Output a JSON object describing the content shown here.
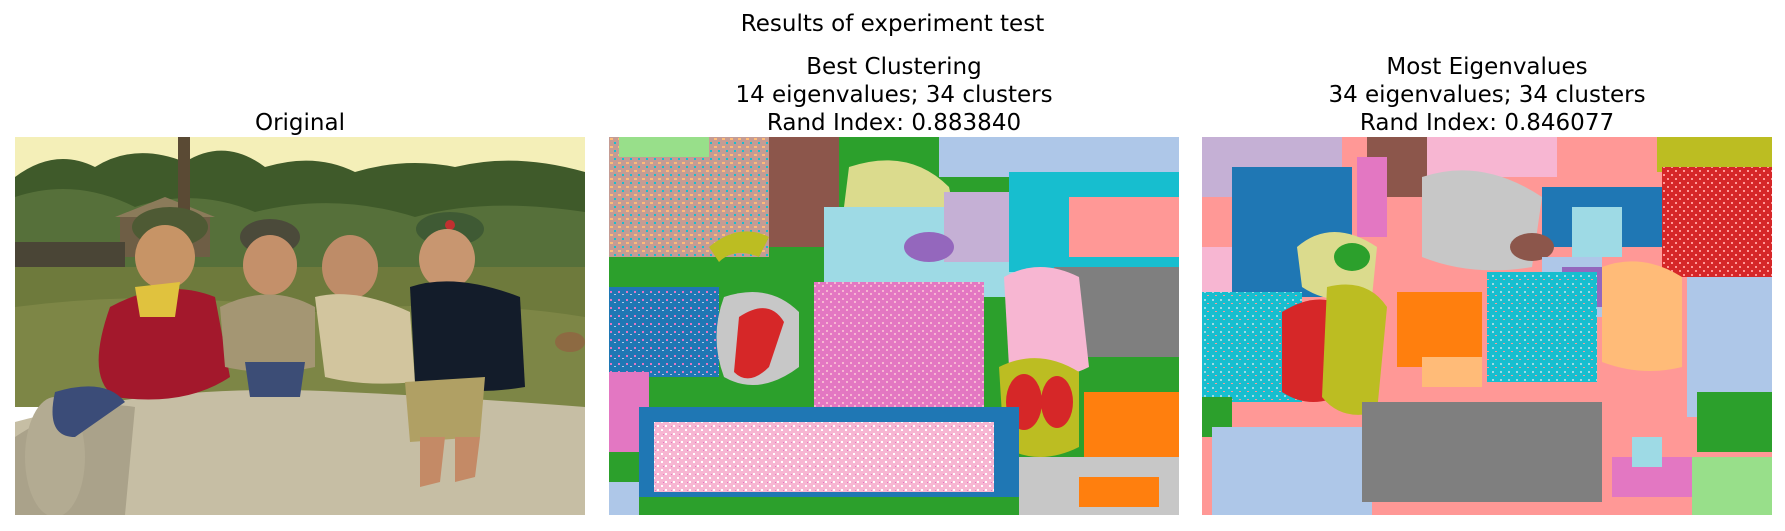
{
  "figure": {
    "suptitle": "Results of experiment test"
  },
  "panels": [
    {
      "title_lines": [
        "Original"
      ],
      "image": "photo of four children sitting on a concrete pipe in a village"
    },
    {
      "title_lines": [
        "Best Clustering",
        "14 eigenvalues; 34 clusters",
        "Rand Index: 0.883840"
      ],
      "image": "segmentation map"
    },
    {
      "title_lines": [
        "Most Eigenvalues",
        "34 eigenvalues; 34 clusters",
        "Rand Index: 0.846077"
      ],
      "image": "segmentation map"
    }
  ],
  "palette": {
    "blue": "#1f77b4",
    "lightblue": "#aec7e8",
    "orange": "#ff7f0e",
    "peach": "#ffbb78",
    "green": "#2ca02c",
    "lightgreen": "#98df8a",
    "red": "#d62728",
    "salmon": "#ff9896",
    "purple": "#9467bd",
    "lavender": "#c5b0d5",
    "brown": "#8c564b",
    "tan": "#c49c94",
    "pink": "#e377c2",
    "lightpink": "#f7b6d2",
    "gray": "#7f7f7f",
    "lightgray": "#c7c7c7",
    "olive": "#bcbd22",
    "khaki": "#dbdb8d",
    "cyan": "#17becf",
    "lightcyan": "#9edae5"
  }
}
